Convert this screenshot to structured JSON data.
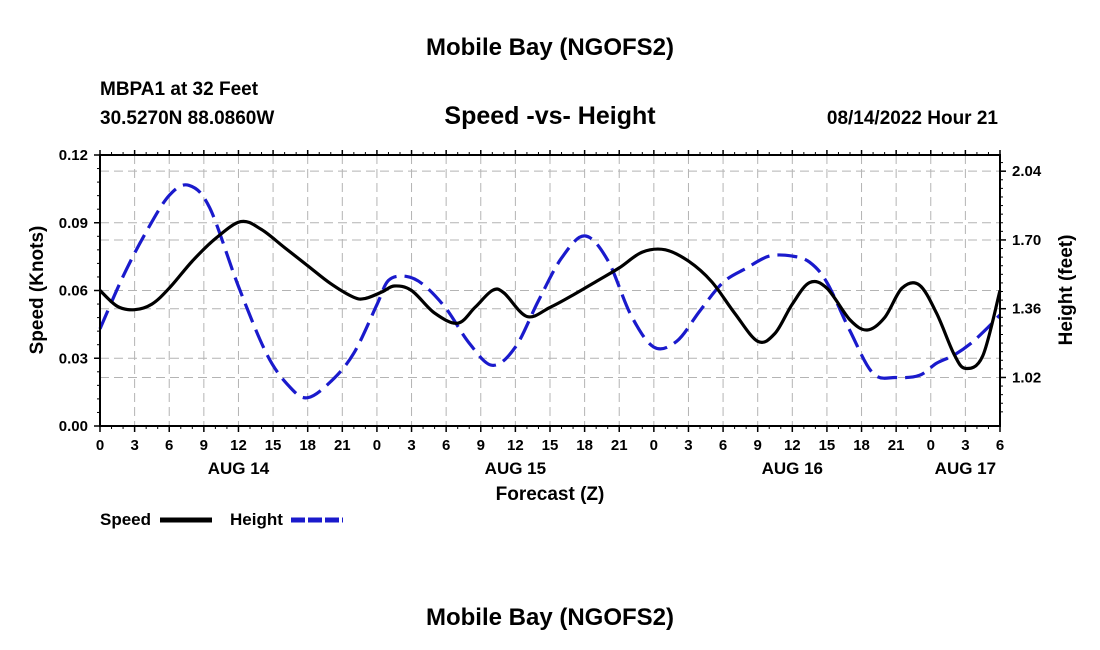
{
  "header": {
    "title": "Mobile Bay (NGOFS2)",
    "station": "MBPA1 at 32 Feet",
    "coords": "30.5270N  88.0860W",
    "subtitle": "Speed -vs- Height",
    "timestamp": "08/14/2022 Hour 21"
  },
  "footer": {
    "title": "Mobile Bay (NGOFS2)"
  },
  "colors": {
    "speed": "#000000",
    "height": "#1a1acc",
    "grid": "#b4b4b4"
  },
  "chart_data": {
    "type": "line",
    "title": "Speed -vs- Height",
    "xlabel": "Forecast (Z)",
    "ylabel": "Speed (Knots)",
    "y2label": "Height (feet)",
    "x_unit": "hours from 00Z Aug 14",
    "xlim": [
      0,
      78
    ],
    "ylim": [
      0,
      0.12
    ],
    "y2lim": [
      0.78,
      2.12
    ],
    "grid": true,
    "legend_position": "bottom-left",
    "x_ticks": [
      0,
      3,
      6,
      9,
      12,
      15,
      18,
      21,
      24,
      27,
      30,
      33,
      36,
      39,
      42,
      45,
      48,
      51,
      54,
      57,
      60,
      63,
      66,
      69,
      72,
      75,
      78
    ],
    "x_tick_labels": [
      "0",
      "3",
      "6",
      "9",
      "12",
      "15",
      "18",
      "21",
      "0",
      "3",
      "6",
      "9",
      "12",
      "15",
      "18",
      "21",
      "0",
      "3",
      "6",
      "9",
      "12",
      "15",
      "18",
      "21",
      "0",
      "3",
      "6"
    ],
    "day_labels": [
      {
        "label": "AUG 14",
        "x": 12
      },
      {
        "label": "AUG 15",
        "x": 36
      },
      {
        "label": "AUG 16",
        "x": 60
      },
      {
        "label": "AUG 17",
        "x": 75
      }
    ],
    "y_ticks": [
      0,
      0.03,
      0.06,
      0.09,
      0.12
    ],
    "y_tick_labels": [
      "0.00",
      "0.03",
      "0.06",
      "0.09",
      "0.12"
    ],
    "y2_ticks": [
      1.02,
      1.36,
      1.7,
      2.04
    ],
    "y2_tick_labels": [
      "1.02",
      "1.36",
      "1.70",
      "2.04"
    ],
    "series": [
      {
        "name": "Speed",
        "axis": "left",
        "style": "solid",
        "x": [
          0,
          1.5,
          3,
          4.5,
          6,
          8,
          10,
          12.2,
          14,
          16,
          18,
          20,
          22,
          23,
          24.5,
          25.5,
          27,
          29,
          31,
          32.5,
          34,
          35,
          37,
          39,
          41,
          43,
          45,
          47,
          49,
          51,
          53,
          55,
          57,
          58.5,
          60,
          61.5,
          63,
          65,
          66.5,
          68,
          69.5,
          71,
          72.5,
          74,
          75,
          76.5,
          78
        ],
        "values": [
          0.06,
          0.053,
          0.0515,
          0.054,
          0.061,
          0.073,
          0.083,
          0.0905,
          0.087,
          0.079,
          0.071,
          0.063,
          0.057,
          0.0565,
          0.0595,
          0.062,
          0.06,
          0.05,
          0.0455,
          0.0525,
          0.06,
          0.059,
          0.0485,
          0.0525,
          0.058,
          0.064,
          0.07,
          0.077,
          0.078,
          0.073,
          0.064,
          0.05,
          0.0375,
          0.041,
          0.054,
          0.0635,
          0.061,
          0.047,
          0.0425,
          0.048,
          0.061,
          0.0625,
          0.05,
          0.032,
          0.0255,
          0.031,
          0.06
        ]
      },
      {
        "name": "Height",
        "axis": "right",
        "style": "dashed",
        "x": [
          0,
          2,
          4,
          6,
          7.7,
          9.5,
          12,
          14.5,
          16.5,
          18,
          20,
          22,
          24,
          25,
          26.5,
          28,
          30,
          32,
          34,
          36,
          38,
          40,
          42,
          44,
          46,
          48,
          50,
          52,
          54,
          56,
          58,
          60,
          61.5,
          63,
          65,
          67,
          69,
          71,
          72.5,
          74,
          75.5,
          77,
          78
        ],
        "values": [
          1.26,
          1.52,
          1.74,
          1.92,
          1.97,
          1.86,
          1.47,
          1.13,
          0.97,
          0.92,
          1.0,
          1.14,
          1.38,
          1.5,
          1.52,
          1.48,
          1.36,
          1.19,
          1.08,
          1.17,
          1.4,
          1.61,
          1.72,
          1.6,
          1.33,
          1.17,
          1.2,
          1.35,
          1.49,
          1.56,
          1.62,
          1.62,
          1.59,
          1.49,
          1.25,
          1.04,
          1.02,
          1.03,
          1.09,
          1.13,
          1.19,
          1.27,
          1.33
        ]
      }
    ]
  }
}
